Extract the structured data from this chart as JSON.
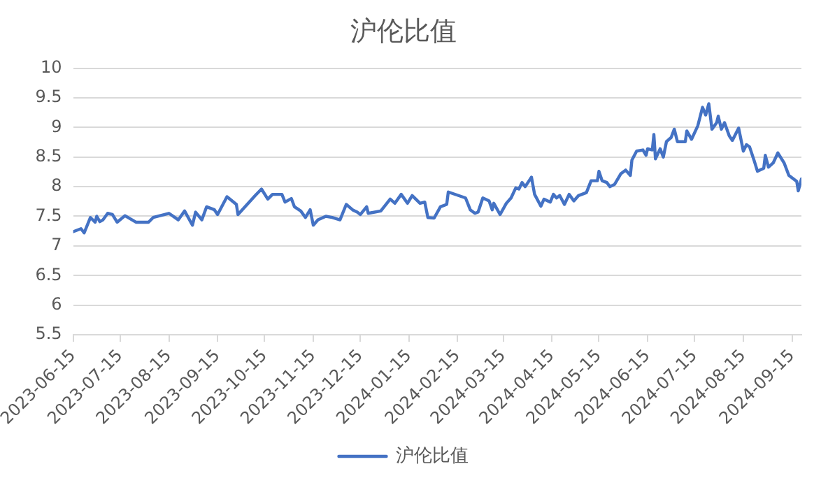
{
  "chart_data": {
    "type": "line",
    "title": "沪伦比值",
    "x": [
      "2023-06-15",
      "2023-06-20",
      "2023-06-22",
      "2023-06-26",
      "2023-06-29",
      "2023-06-30",
      "2023-07-02",
      "2023-07-04",
      "2023-07-07",
      "2023-07-10",
      "2023-07-13",
      "2023-07-18",
      "2023-07-25",
      "2023-08-02",
      "2023-08-05",
      "2023-08-15",
      "2023-08-21",
      "2023-08-25",
      "2023-08-30",
      "2023-09-01",
      "2023-09-05",
      "2023-09-08",
      "2023-09-13",
      "2023-09-15",
      "2023-09-21",
      "2023-09-27",
      "2023-09-28",
      "2023-10-09",
      "2023-10-13",
      "2023-10-17",
      "2023-10-20",
      "2023-10-26",
      "2023-10-28",
      "2023-11-01",
      "2023-11-03",
      "2023-11-07",
      "2023-11-10",
      "2023-11-13",
      "2023-11-15",
      "2023-11-18",
      "2023-11-23",
      "2023-11-27",
      "2023-12-02",
      "2023-12-06",
      "2023-12-10",
      "2023-12-13",
      "2023-12-15",
      "2023-12-19",
      "2023-12-20",
      "2023-12-28",
      "2024-01-03",
      "2024-01-06",
      "2024-01-10",
      "2024-01-14",
      "2024-01-17",
      "2024-01-22",
      "2024-01-25",
      "2024-01-27",
      "2024-01-31",
      "2024-02-04",
      "2024-02-08",
      "2024-02-09",
      "2024-02-20",
      "2024-02-23",
      "2024-02-26",
      "2024-02-28",
      "2024-03-02",
      "2024-03-06",
      "2024-03-08",
      "2024-03-09",
      "2024-03-13",
      "2024-03-17",
      "2024-03-20",
      "2024-03-23",
      "2024-03-25",
      "2024-03-27",
      "2024-03-29",
      "2024-04-02",
      "2024-04-04",
      "2024-04-08",
      "2024-04-10",
      "2024-04-14",
      "2024-04-16",
      "2024-04-18",
      "2024-04-20",
      "2024-04-23",
      "2024-04-26",
      "2024-04-29",
      "2024-05-02",
      "2024-05-07",
      "2024-05-10",
      "2024-05-14",
      "2024-05-15",
      "2024-05-17",
      "2024-05-20",
      "2024-05-22",
      "2024-05-25",
      "2024-05-29",
      "2024-06-01",
      "2024-06-04",
      "2024-06-05",
      "2024-06-08",
      "2024-06-12",
      "2024-06-14",
      "2024-06-15",
      "2024-06-18",
      "2024-06-19",
      "2024-06-20",
      "2024-06-23",
      "2024-06-25",
      "2024-06-27",
      "2024-06-30",
      "2024-07-02",
      "2024-07-04",
      "2024-07-09",
      "2024-07-10",
      "2024-07-13",
      "2024-07-17",
      "2024-07-20",
      "2024-07-22",
      "2024-07-24",
      "2024-07-26",
      "2024-07-29",
      "2024-07-30",
      "2024-08-01",
      "2024-08-03",
      "2024-08-06",
      "2024-08-08",
      "2024-08-12",
      "2024-08-15",
      "2024-08-17",
      "2024-08-19",
      "2024-08-22",
      "2024-08-24",
      "2024-08-28",
      "2024-08-29",
      "2024-08-31",
      "2024-09-03",
      "2024-09-06",
      "2024-09-10",
      "2024-09-13",
      "2024-09-18",
      "2024-09-19",
      "2024-09-21"
    ],
    "series": [
      {
        "name": "沪伦比值",
        "color": "#4472c4",
        "values": [
          7.24,
          7.29,
          7.22,
          7.48,
          7.4,
          7.5,
          7.41,
          7.44,
          7.55,
          7.53,
          7.4,
          7.51,
          7.4,
          7.4,
          7.48,
          7.55,
          7.44,
          7.59,
          7.35,
          7.57,
          7.44,
          7.66,
          7.61,
          7.53,
          7.83,
          7.7,
          7.53,
          7.85,
          7.96,
          7.79,
          7.87,
          7.87,
          7.74,
          7.8,
          7.66,
          7.59,
          7.48,
          7.61,
          7.35,
          7.44,
          7.5,
          7.48,
          7.44,
          7.7,
          7.61,
          7.57,
          7.53,
          7.66,
          7.55,
          7.59,
          7.79,
          7.72,
          7.87,
          7.72,
          7.85,
          7.72,
          7.74,
          7.48,
          7.47,
          7.66,
          7.7,
          7.91,
          7.81,
          7.61,
          7.55,
          7.57,
          7.81,
          7.76,
          7.61,
          7.72,
          7.53,
          7.72,
          7.81,
          7.98,
          7.96,
          8.07,
          8.0,
          8.16,
          7.87,
          7.67,
          7.79,
          7.74,
          7.87,
          7.81,
          7.85,
          7.7,
          7.87,
          7.76,
          7.85,
          7.9,
          8.1,
          8.1,
          8.26,
          8.1,
          8.07,
          8.0,
          8.04,
          8.22,
          8.28,
          8.19,
          8.45,
          8.6,
          8.62,
          8.53,
          8.64,
          8.62,
          8.88,
          8.47,
          8.64,
          8.5,
          8.76,
          8.83,
          8.97,
          8.76,
          8.76,
          8.94,
          8.8,
          9.03,
          9.34,
          9.21,
          9.4,
          8.97,
          9.08,
          9.19,
          8.97,
          9.08,
          8.86,
          8.78,
          8.99,
          8.6,
          8.71,
          8.67,
          8.43,
          8.26,
          8.31,
          8.53,
          8.33,
          8.4,
          8.57,
          8.4,
          8.19,
          8.09,
          7.93,
          8.13
        ]
      }
    ],
    "xlim": [
      "2023-06-15",
      "2024-09-21"
    ],
    "xticks": [
      "2023-06-15",
      "2023-07-15",
      "2023-08-15",
      "2023-09-15",
      "2023-10-15",
      "2023-11-15",
      "2023-12-15",
      "2024-01-15",
      "2024-02-15",
      "2024-03-15",
      "2024-04-15",
      "2024-05-15",
      "2024-06-15",
      "2024-07-15",
      "2024-08-15",
      "2024-09-15"
    ],
    "ylim": [
      5.5,
      10
    ],
    "yticks": [
      5.5,
      6,
      6.5,
      7,
      7.5,
      8,
      8.5,
      9,
      9.5,
      10
    ],
    "grid": "y",
    "legend": "bottom",
    "marker": "none",
    "line_style": "solid"
  }
}
